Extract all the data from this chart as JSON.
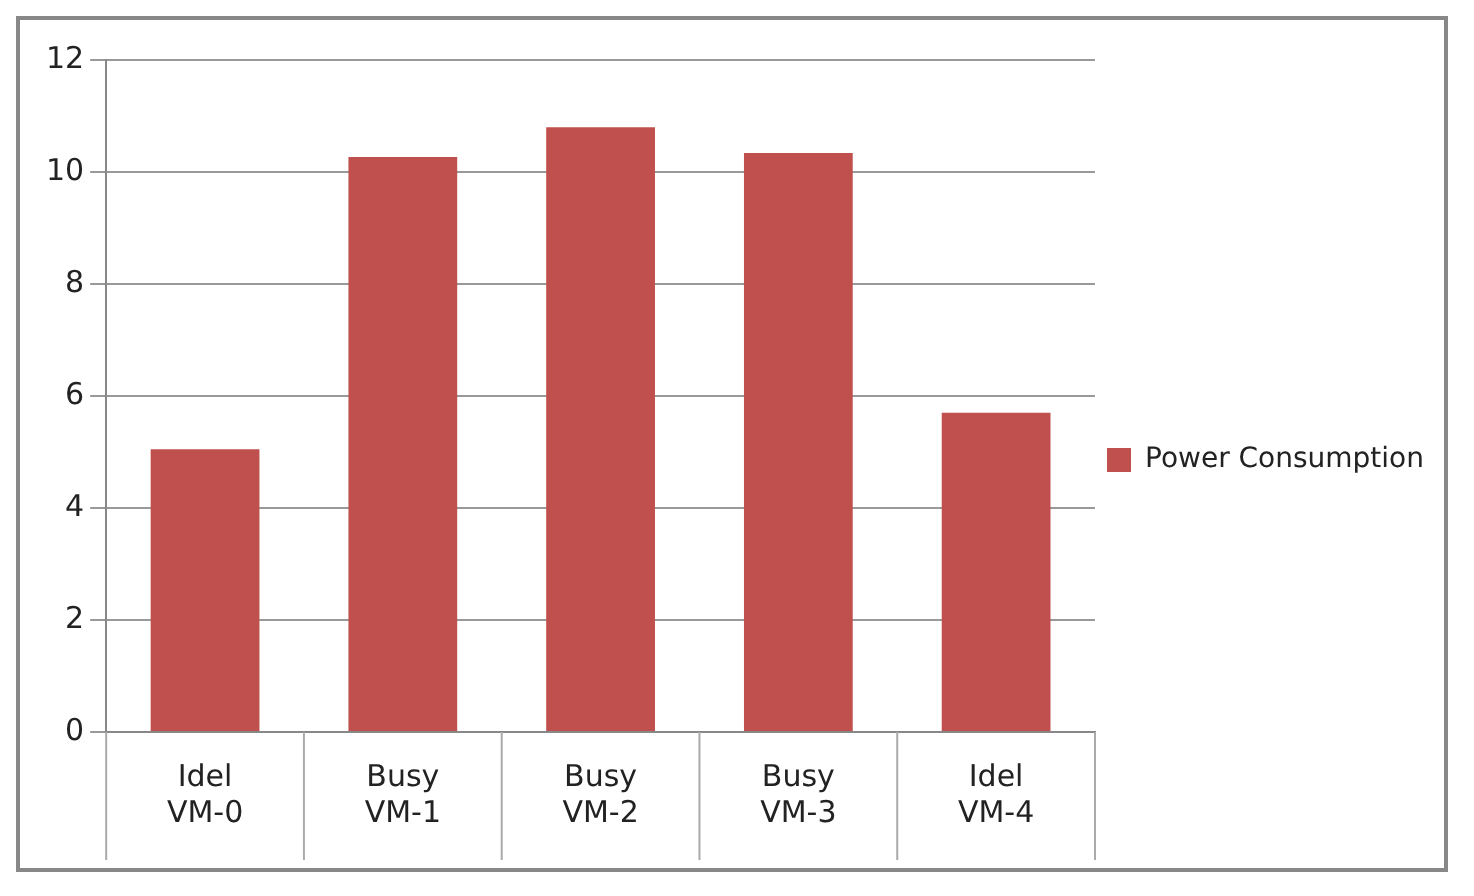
{
  "chart_data": {
    "type": "bar",
    "categories": [
      "Idel\nVM-0",
      "Busy\nVM-1",
      "Busy\nVM-2",
      "Busy\nVM-3",
      "Idel\nVM-4"
    ],
    "series": [
      {
        "name": "Power Consumption",
        "color": "#c0504d",
        "values": [
          5.05,
          10.27,
          10.8,
          10.34,
          5.7
        ]
      }
    ],
    "ylim": [
      0,
      12
    ],
    "yticks": [
      0,
      2,
      4,
      6,
      8,
      10,
      12
    ],
    "grid": "y",
    "legend": "right"
  }
}
